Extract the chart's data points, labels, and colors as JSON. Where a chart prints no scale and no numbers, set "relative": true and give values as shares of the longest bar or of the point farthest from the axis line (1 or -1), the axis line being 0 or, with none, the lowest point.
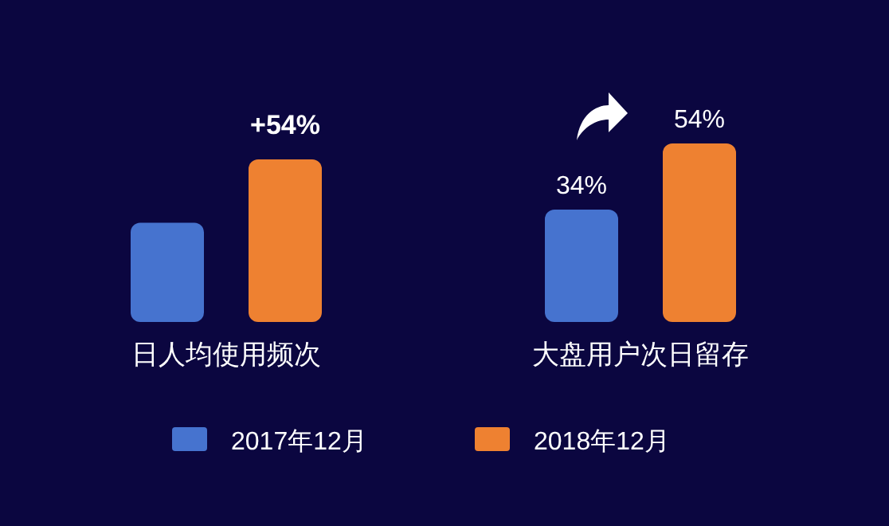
{
  "chart_data": [
    {
      "type": "bar",
      "relative": true,
      "categories": [
        "日人均使用频次"
      ],
      "series": [
        {
          "color": "#4673cf",
          "values": [
            0.61
          ]
        },
        {
          "color": "#ee8131",
          "values": [
            1
          ]
        }
      ],
      "annotations": [
        "+54%"
      ]
    },
    {
      "type": "bar",
      "categories": [
        "大盘用户次日留存"
      ],
      "series": [
        {
          "name": "2017年12月",
          "color": "#4673cf",
          "values": [
            34
          ],
          "value_labels": [
            "34%"
          ]
        },
        {
          "name": "2018年12月",
          "color": "#ee8131",
          "values": [
            54
          ],
          "value_labels": [
            "54%"
          ]
        }
      ],
      "legend": "bottom"
    }
  ]
}
